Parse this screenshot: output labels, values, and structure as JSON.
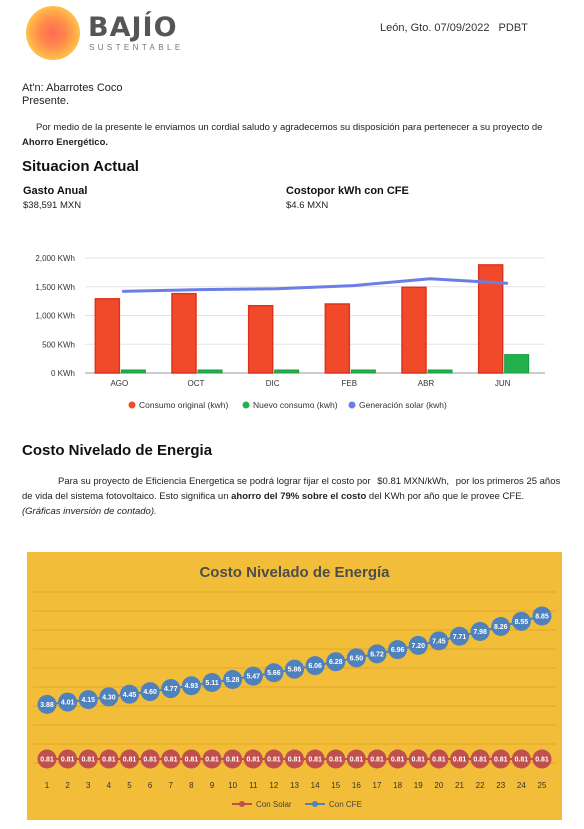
{
  "header": {
    "brand_name": "BAJÍO",
    "brand_tagline": "SUSTENTABLE",
    "location_date": "León, Gto. 07/09/2022",
    "code": "PDBT"
  },
  "letter": {
    "attention": "At'n: Abarrotes Coco",
    "presente": "Presente.",
    "intro_text": "Por medio de la presente le enviamos un cordial saludo y agradecemos su disposición para pertenecer a su proyecto de",
    "intro_bold": "Ahorro Energético."
  },
  "situacion": {
    "title": "Situacion Actual",
    "gasto_label": "Gasto Anual",
    "gasto_value": "$38,591 MXN",
    "costo_label": "Costopor kWh con CFE",
    "costo_value": "$4.6 MXN"
  },
  "costo_nivelado": {
    "title": "Costo Nivelado de Energia",
    "text_1": "Para su proyecto de Eficiencia Energetica se podrá lograr fijar el costo por",
    "price": "$0.81 MXN/kWh,",
    "text_2": "por los primeros 25 años de vida del sistema fotovoltaico. Esto significa un",
    "bold_1": "ahorro del 79% sobre el costo",
    "text_3": "del KWh por año que le provee CFE.",
    "note": "(Gráficas inversión de contado)."
  },
  "chart_data": [
    {
      "type": "bar",
      "categories": [
        "AGO",
        "OCT",
        "DIC",
        "FEB",
        "ABR",
        "JUN"
      ],
      "series": [
        {
          "name": "Consumo original (kwh)",
          "kind": "bar",
          "color": "#f04a2a",
          "values": [
            1290,
            1380,
            1170,
            1200,
            1490,
            1880
          ]
        },
        {
          "name": "Nuevo consumo (kwh)",
          "kind": "bar",
          "color": "#22b14c",
          "values": [
            20,
            20,
            20,
            20,
            20,
            320
          ]
        },
        {
          "name": "Generación solar (kwh)",
          "kind": "line",
          "color": "#6b7ee6",
          "values": [
            1420,
            1450,
            1465,
            1520,
            1640,
            1560
          ]
        }
      ],
      "y_ticks": [
        "0 KWh",
        "500 KWh",
        "1,000 KWh",
        "1,500 KWh",
        "2,000 KWh"
      ],
      "ylim": [
        0,
        2000
      ],
      "grid": true,
      "legend_position": "bottom"
    },
    {
      "type": "line",
      "title": "Costo Nivelado de Energía",
      "background": "#f2bd38",
      "x": [
        1,
        2,
        3,
        4,
        5,
        6,
        7,
        8,
        9,
        10,
        11,
        12,
        13,
        14,
        15,
        16,
        17,
        18,
        19,
        20,
        21,
        22,
        23,
        24,
        25
      ],
      "series": [
        {
          "name": "Con Solar",
          "color": "#c0504d",
          "values": [
            0.81,
            0.81,
            0.81,
            0.81,
            0.81,
            0.81,
            0.81,
            0.81,
            0.81,
            0.81,
            0.81,
            0.81,
            0.81,
            0.81,
            0.81,
            0.81,
            0.81,
            0.81,
            0.81,
            0.81,
            0.81,
            0.81,
            0.81,
            0.81,
            0.81
          ],
          "labels": [
            "0.81",
            "0.81",
            "0.81",
            "0.81",
            "0.81",
            "0.81",
            "0.81",
            "0.81",
            "0.81",
            "0.81",
            "0.81",
            "0.81",
            "0.81",
            "0.81",
            "0.81",
            "0.81",
            "0.81",
            "0.81",
            "0.81",
            "0.81",
            "0.81",
            "0.81",
            "0.81",
            "0.81",
            "0.81"
          ]
        },
        {
          "name": "Con CFE",
          "color": "#4f81bd",
          "values": [
            3.88,
            4.01,
            4.15,
            4.3,
            4.45,
            4.6,
            4.77,
            4.93,
            5.11,
            5.28,
            5.47,
            5.66,
            5.86,
            6.06,
            6.28,
            6.5,
            6.72,
            6.96,
            7.2,
            7.45,
            7.71,
            7.98,
            8.26,
            8.55,
            8.85
          ],
          "labels": [
            "3.88",
            "4.01",
            "4.15",
            "4.30",
            "4.45",
            "4.60",
            "4.77",
            "4.93",
            "5.11",
            "5.28",
            "5.47",
            "5.66",
            "5.86",
            "6.06",
            "6.28",
            "6.50",
            "6.72",
            "6.96",
            "7.20",
            "7.45",
            "7.71",
            "7.98",
            "8.26",
            "8.55",
            "8.85"
          ]
        }
      ],
      "grid": true,
      "legend_position": "bottom"
    }
  ]
}
